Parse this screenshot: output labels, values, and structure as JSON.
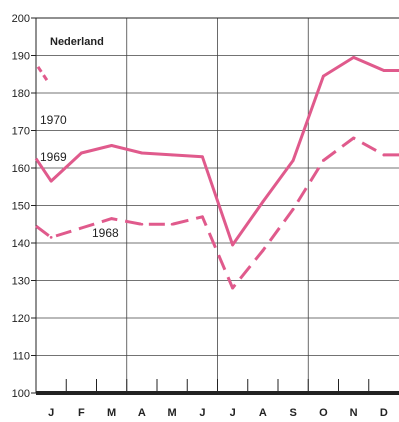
{
  "chart_data": {
    "type": "line",
    "title": "",
    "region_label": "Nederland",
    "xlabel": "",
    "ylabel": "",
    "x_labels": [
      "J",
      "F",
      "M",
      "A",
      "M",
      "J",
      "J",
      "A",
      "S",
      "O",
      "N",
      "D"
    ],
    "y_ticks": [
      100,
      110,
      120,
      130,
      140,
      150,
      160,
      170,
      180,
      190,
      200
    ],
    "ylim": [
      100,
      200
    ],
    "grid": true,
    "colors": {
      "line": "#e05a8c",
      "axis": "#222222",
      "grid": "#444444"
    },
    "series": [
      {
        "name": "1970",
        "style": "solid",
        "values": [
          187,
          183
        ]
      },
      {
        "name": "1969",
        "style": "solid",
        "values": [
          156.5,
          164,
          166,
          164,
          163.5,
          163,
          139.5,
          151,
          162,
          184.5,
          189.5,
          186
        ]
      },
      {
        "name": "1968",
        "style": "dashed",
        "values": [
          141.5,
          144,
          146.5,
          145,
          145,
          147,
          128,
          138,
          149,
          162,
          168,
          163.5
        ]
      }
    ]
  }
}
